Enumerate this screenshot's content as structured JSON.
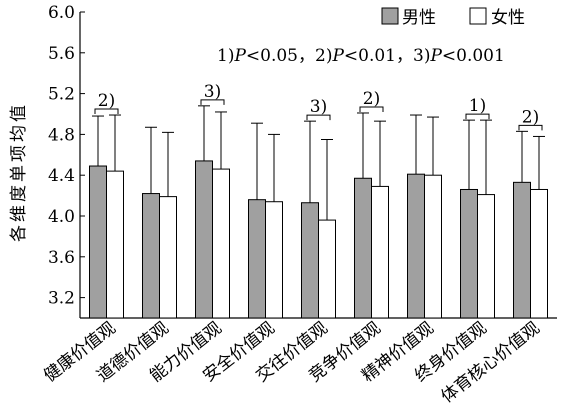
{
  "chart_data": {
    "type": "bar",
    "ylabel": "各维度单项均值",
    "ylim": [
      3.0,
      6.0
    ],
    "yticks": [
      "3.2",
      "3.6",
      "4.0",
      "4.4",
      "4.8",
      "5.2",
      "5.6",
      "6.0"
    ],
    "categories": [
      "健康价值观",
      "道德价值观",
      "能力价值观",
      "安全价值观",
      "交往价值观",
      "竞争价值观",
      "精神价值观",
      "终身价值观",
      "体育核心价值观"
    ],
    "series": [
      {
        "name": "男性",
        "color": "#a0a0a0",
        "values": [
          4.49,
          4.22,
          4.54,
          4.16,
          4.13,
          4.37,
          4.41,
          4.26,
          4.33
        ],
        "error_upper": [
          4.98,
          4.87,
          5.08,
          4.91,
          4.93,
          5.01,
          4.99,
          4.94,
          4.83
        ]
      },
      {
        "name": "女性",
        "color": "#ffffff",
        "values": [
          4.44,
          4.19,
          4.46,
          4.14,
          3.96,
          4.29,
          4.4,
          4.21,
          4.26
        ],
        "error_upper": [
          4.99,
          4.82,
          5.02,
          4.8,
          4.75,
          4.93,
          4.97,
          4.94,
          4.78
        ]
      }
    ],
    "significance": [
      "2)",
      "",
      "3)",
      "",
      "3)",
      "2)",
      "",
      "1)",
      "2)"
    ],
    "note_parts": [
      {
        "text": "1)",
        "italic": false
      },
      {
        "text": "P",
        "italic": true
      },
      {
        "text": "<0.05，2)",
        "italic": false
      },
      {
        "text": "P",
        "italic": true
      },
      {
        "text": "<0.01，3)",
        "italic": false
      },
      {
        "text": "P",
        "italic": true
      },
      {
        "text": "<0.001",
        "italic": false
      }
    ],
    "legend_position": "top-right",
    "grid": false
  }
}
